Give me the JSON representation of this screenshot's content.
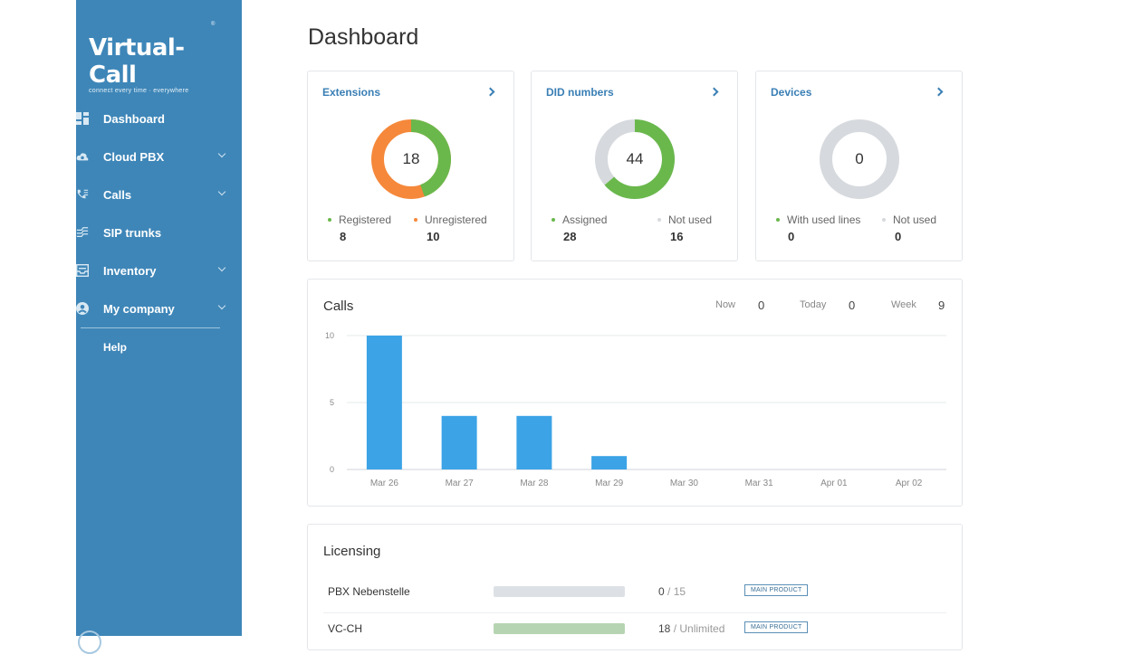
{
  "sidebar": {
    "logo": "Virtual-Call",
    "tagline": "connect every time · everywhere",
    "items": [
      {
        "label": "Dashboard",
        "icon": "dashboard-icon",
        "has_submenu": false
      },
      {
        "label": "Cloud PBX",
        "icon": "cloud-icon",
        "has_submenu": true
      },
      {
        "label": "Calls",
        "icon": "phone-icon",
        "has_submenu": true
      },
      {
        "label": "SIP trunks",
        "icon": "trunk-icon",
        "has_submenu": false
      },
      {
        "label": "Inventory",
        "icon": "inventory-icon",
        "has_submenu": true
      },
      {
        "label": "My company",
        "icon": "user-icon",
        "has_submenu": true
      }
    ],
    "help": "Help"
  },
  "page": {
    "title": "Dashboard"
  },
  "cards": [
    {
      "title": "Extensions",
      "total": "18",
      "legend": [
        {
          "label": "Registered",
          "value": "8",
          "color": "#6ab84c"
        },
        {
          "label": "Unregistered",
          "value": "10",
          "color": "#f5883a"
        }
      ]
    },
    {
      "title": "DID numbers",
      "total": "44",
      "legend": [
        {
          "label": "Assigned",
          "value": "28",
          "color": "#6ab84c"
        },
        {
          "label": "Not used",
          "value": "16",
          "color": "#d6d9dd"
        }
      ]
    },
    {
      "title": "Devices",
      "total": "0",
      "legend": [
        {
          "label": "With used lines",
          "value": "0",
          "color": "#6ab84c"
        },
        {
          "label": "Not used",
          "value": "0",
          "color": "#d6d9dd"
        }
      ]
    }
  ],
  "calls": {
    "title": "Calls",
    "stats": [
      {
        "label": "Now",
        "value": "0"
      },
      {
        "label": "Today",
        "value": "0"
      },
      {
        "label": "Week",
        "value": "9"
      }
    ]
  },
  "chart_data": {
    "type": "bar",
    "title": "Calls",
    "categories": [
      "Mar 26",
      "Mar 27",
      "Mar 28",
      "Mar 29",
      "Mar 30",
      "Mar 31",
      "Apr 01",
      "Apr 02"
    ],
    "values": [
      10,
      4,
      4,
      1,
      0,
      0,
      0,
      0
    ],
    "yticks": [
      0,
      5,
      10
    ],
    "ylim": [
      0,
      10
    ],
    "grid": true,
    "bar_color": "#3ba3e6"
  },
  "licensing": {
    "title": "Licensing",
    "rows": [
      {
        "name": "PBX Nebenstelle",
        "used": "0",
        "total": "15",
        "fill": 0,
        "badge": "MAIN PRODUCT"
      },
      {
        "name": "VC-CH",
        "used": "18",
        "total": "Unlimited",
        "fill": 1,
        "badge": "MAIN PRODUCT"
      }
    ]
  }
}
